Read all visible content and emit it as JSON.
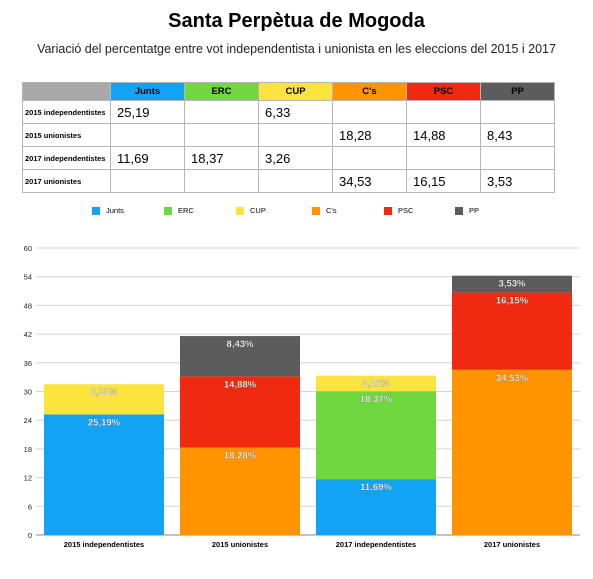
{
  "title": "Santa Perpètua de Mogoda",
  "subtitle": "Variació del percentatge entre vot independentista i unionista en les eleccions del 2015 i 2017",
  "colors": {
    "Junts": "#12a3f5",
    "ERC": "#6ed83e",
    "CUP": "#fde33d",
    "C's": "#ff9300",
    "PSC": "#ef2a10",
    "PP": "#5c5c5c"
  },
  "table": {
    "columns": [
      "Junts",
      "ERC",
      "CUP",
      "C's",
      "PSC",
      "PP"
    ],
    "rows": [
      {
        "label": "2015 independentistes",
        "cells": [
          "25,19",
          "",
          "6,33",
          "",
          "",
          ""
        ]
      },
      {
        "label": "2015 unionistes",
        "cells": [
          "",
          "",
          "",
          "18,28",
          "14,88",
          "8,43"
        ]
      },
      {
        "label": "2017 independentistes",
        "cells": [
          "11,69",
          "18,37",
          "3,26",
          "",
          "",
          ""
        ]
      },
      {
        "label": "2017 unionistes",
        "cells": [
          "",
          "",
          "",
          "34,53",
          "16,15",
          "3,53"
        ]
      }
    ]
  },
  "chart_data": {
    "type": "bar",
    "stacked": true,
    "categories": [
      "2015 independentistes",
      "2015 unionistes",
      "2017 independentistes",
      "2017 unionistes"
    ],
    "series": [
      {
        "name": "Junts",
        "values": [
          25.19,
          0,
          11.69,
          0
        ],
        "labels": [
          "25,19%",
          "",
          "11,69%",
          ""
        ]
      },
      {
        "name": "ERC",
        "values": [
          0,
          0,
          18.37,
          0
        ],
        "labels": [
          "",
          "",
          "18,37%",
          ""
        ]
      },
      {
        "name": "CUP",
        "values": [
          6.33,
          0,
          3.26,
          0
        ],
        "labels": [
          "6,33%",
          "",
          "3,26%",
          ""
        ]
      },
      {
        "name": "C's",
        "values": [
          0,
          18.28,
          0,
          34.53
        ],
        "labels": [
          "",
          "18,28%",
          "",
          "34,53%"
        ]
      },
      {
        "name": "PSC",
        "values": [
          0,
          14.88,
          0,
          16.15
        ],
        "labels": [
          "",
          "14,88%",
          "",
          "16,15%"
        ]
      },
      {
        "name": "PP",
        "values": [
          0,
          8.43,
          0,
          3.53
        ],
        "labels": [
          "",
          "8,43%",
          "",
          "3,53%"
        ]
      }
    ],
    "yticks": [
      "0",
      "6",
      "12",
      "18",
      "24",
      "30",
      "36",
      "42",
      "48",
      "54",
      "60"
    ],
    "ylim": [
      0,
      60
    ],
    "grid": true,
    "legend": "top"
  }
}
